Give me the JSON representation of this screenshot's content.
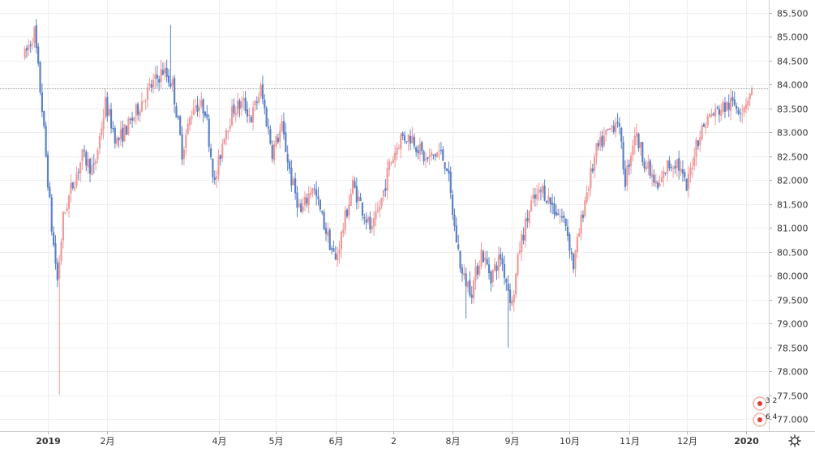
{
  "chart_data": {
    "type": "candlestick",
    "title": "",
    "xlabel": "",
    "ylabel": "",
    "ylim": [
      76.75,
      85.75
    ],
    "y_ticks": [
      "85.500",
      "85.000",
      "84.500",
      "84.000",
      "83.500",
      "83.000",
      "82.500",
      "82.000",
      "81.500",
      "81.000",
      "80.500",
      "80.000",
      "79.500",
      "79.000",
      "78.500",
      "78.000",
      "77.500",
      "77.000"
    ],
    "x_ticks": [
      {
        "label": "2019",
        "bold": true,
        "day": 12
      },
      {
        "label": "2月",
        "bold": false,
        "day": 43
      },
      {
        "label": "4月",
        "bold": false,
        "day": 101
      },
      {
        "label": "5月",
        "bold": false,
        "day": 131
      },
      {
        "label": "6月",
        "bold": false,
        "day": 162
      },
      {
        "label": "2",
        "bold": false,
        "day": 192
      },
      {
        "label": "8月",
        "bold": false,
        "day": 223
      },
      {
        "label": "9月",
        "bold": false,
        "day": 254
      },
      {
        "label": "10月",
        "bold": false,
        "day": 284
      },
      {
        "label": "11月",
        "bold": false,
        "day": 315
      },
      {
        "label": "12月",
        "bold": false,
        "day": 345
      },
      {
        "label": "2020",
        "bold": true,
        "day": 376
      }
    ],
    "last_price": 83.92,
    "grid": true,
    "colors": {
      "up": "#ef9a9a",
      "down": "#5b82c6",
      "price_line": "#9e9e9e",
      "grid": "#eeeeee"
    },
    "path_points": [
      {
        "day": 0,
        "price": 84.6
      },
      {
        "day": 5,
        "price": 85.1
      },
      {
        "day": 9,
        "price": 83.5
      },
      {
        "day": 12,
        "price": 82.0
      },
      {
        "day": 14,
        "price": 81.0
      },
      {
        "day": 17,
        "price": 79.9
      },
      {
        "day": 20,
        "price": 81.2
      },
      {
        "day": 24,
        "price": 81.8
      },
      {
        "day": 30,
        "price": 82.5
      },
      {
        "day": 36,
        "price": 82.2
      },
      {
        "day": 42,
        "price": 83.6
      },
      {
        "day": 48,
        "price": 82.8
      },
      {
        "day": 55,
        "price": 83.2
      },
      {
        "day": 63,
        "price": 83.8
      },
      {
        "day": 72,
        "price": 84.3
      },
      {
        "day": 77,
        "price": 84.0
      },
      {
        "day": 82,
        "price": 82.6
      },
      {
        "day": 88,
        "price": 83.6
      },
      {
        "day": 94,
        "price": 83.5
      },
      {
        "day": 99,
        "price": 81.9
      },
      {
        "day": 104,
        "price": 83.0
      },
      {
        "day": 109,
        "price": 83.5
      },
      {
        "day": 114,
        "price": 83.6
      },
      {
        "day": 118,
        "price": 83.3
      },
      {
        "day": 123,
        "price": 83.9
      },
      {
        "day": 129,
        "price": 82.6
      },
      {
        "day": 134,
        "price": 83.1
      },
      {
        "day": 139,
        "price": 82.0
      },
      {
        "day": 144,
        "price": 81.3
      },
      {
        "day": 150,
        "price": 81.9
      },
      {
        "day": 155,
        "price": 81.2
      },
      {
        "day": 162,
        "price": 80.3
      },
      {
        "day": 167,
        "price": 81.2
      },
      {
        "day": 171,
        "price": 81.9
      },
      {
        "day": 176,
        "price": 81.4
      },
      {
        "day": 181,
        "price": 80.9
      },
      {
        "day": 186,
        "price": 81.6
      },
      {
        "day": 190,
        "price": 82.3
      },
      {
        "day": 196,
        "price": 82.9
      },
      {
        "day": 202,
        "price": 82.9
      },
      {
        "day": 209,
        "price": 82.4
      },
      {
        "day": 216,
        "price": 82.6
      },
      {
        "day": 220,
        "price": 82.3
      },
      {
        "day": 224,
        "price": 81.0
      },
      {
        "day": 228,
        "price": 80.0
      },
      {
        "day": 233,
        "price": 79.7
      },
      {
        "day": 238,
        "price": 80.5
      },
      {
        "day": 243,
        "price": 80.0
      },
      {
        "day": 248,
        "price": 80.4
      },
      {
        "day": 254,
        "price": 79.4
      },
      {
        "day": 258,
        "price": 80.6
      },
      {
        "day": 264,
        "price": 81.5
      },
      {
        "day": 270,
        "price": 81.8
      },
      {
        "day": 276,
        "price": 81.4
      },
      {
        "day": 282,
        "price": 81.1
      },
      {
        "day": 286,
        "price": 80.2
      },
      {
        "day": 292,
        "price": 81.6
      },
      {
        "day": 298,
        "price": 82.6
      },
      {
        "day": 304,
        "price": 83.0
      },
      {
        "day": 309,
        "price": 83.3
      },
      {
        "day": 313,
        "price": 82.0
      },
      {
        "day": 318,
        "price": 83.0
      },
      {
        "day": 324,
        "price": 82.3
      },
      {
        "day": 330,
        "price": 81.8
      },
      {
        "day": 335,
        "price": 82.3
      },
      {
        "day": 340,
        "price": 82.4
      },
      {
        "day": 345,
        "price": 81.8
      },
      {
        "day": 350,
        "price": 82.8
      },
      {
        "day": 356,
        "price": 83.3
      },
      {
        "day": 363,
        "price": 83.5
      },
      {
        "day": 369,
        "price": 83.6
      },
      {
        "day": 374,
        "price": 83.5
      },
      {
        "day": 379,
        "price": 83.92
      }
    ],
    "spikes": [
      {
        "day": 18,
        "low": 77.5
      },
      {
        "day": 76,
        "high": 85.25
      },
      {
        "day": 252,
        "low": 78.5
      },
      {
        "day": 230,
        "low": 79.1
      }
    ]
  },
  "badges": [
    {
      "label": "3 2",
      "color": "#e53935"
    },
    {
      "label": "6 4",
      "color": "#e53935"
    }
  ],
  "settings_icon": "gear-icon"
}
